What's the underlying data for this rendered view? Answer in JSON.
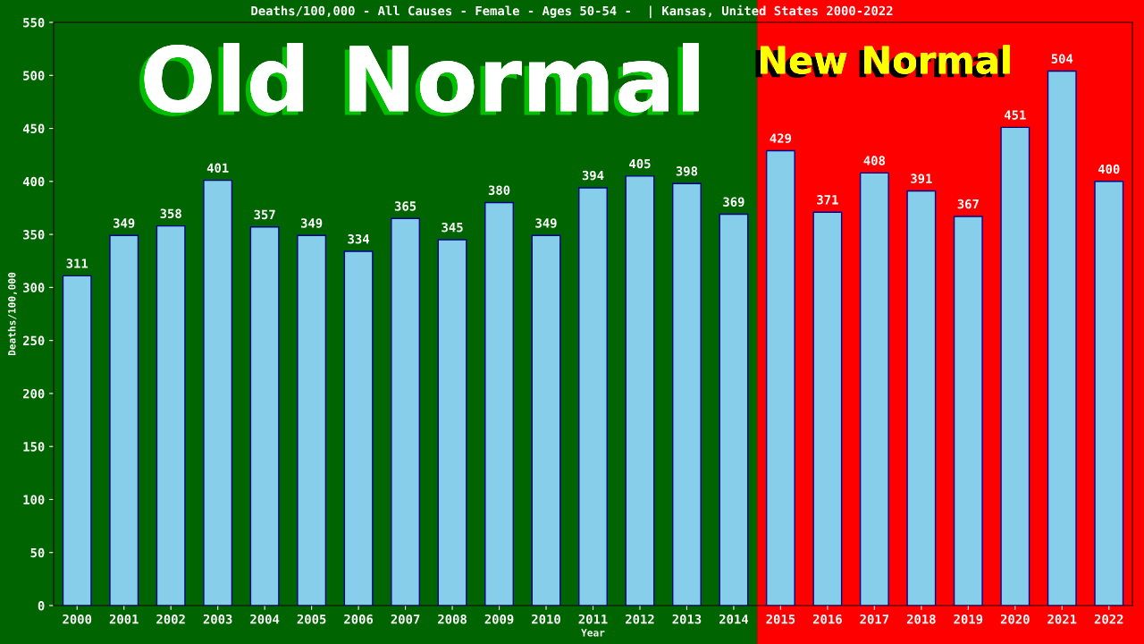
{
  "chart_data": {
    "type": "bar",
    "title": "Deaths/100,000 - All Causes - Female - Ages 50-54 -  | Kansas, United States 2000-2022",
    "xlabel": "Year",
    "ylabel": "Deaths/100,000",
    "categories": [
      "2000",
      "2001",
      "2002",
      "2003",
      "2004",
      "2005",
      "2006",
      "2007",
      "2008",
      "2009",
      "2010",
      "2011",
      "2012",
      "2013",
      "2014",
      "2015",
      "2016",
      "2017",
      "2018",
      "2019",
      "2020",
      "2021",
      "2022"
    ],
    "values": [
      311,
      349,
      358,
      401,
      357,
      349,
      334,
      365,
      345,
      380,
      349,
      394,
      405,
      398,
      369,
      429,
      371,
      408,
      391,
      367,
      451,
      504,
      400
    ],
    "color": "#87ceeb",
    "ylim": [
      0,
      550
    ],
    "yticks": [
      0,
      50,
      100,
      150,
      200,
      250,
      300,
      350,
      400,
      450,
      500,
      550
    ],
    "data_labels": true,
    "grid": false,
    "bands": [
      {
        "axis": "x",
        "from": "2000",
        "to": "2014",
        "label": "Old Normal",
        "color": "#006400"
      },
      {
        "axis": "x",
        "from": "2015",
        "to": "2022",
        "label": "New Normal",
        "color": "#ff0000"
      }
    ]
  }
}
